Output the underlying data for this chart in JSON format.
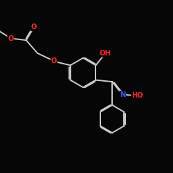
{
  "background_color": "#060606",
  "bond_color": "#cccccc",
  "O_color": "#ff2222",
  "N_color": "#3355ff",
  "lw": 1.4,
  "doff": 0.055,
  "fs": 7.2,
  "xlim": [
    0,
    10
  ],
  "ylim": [
    0,
    10
  ]
}
